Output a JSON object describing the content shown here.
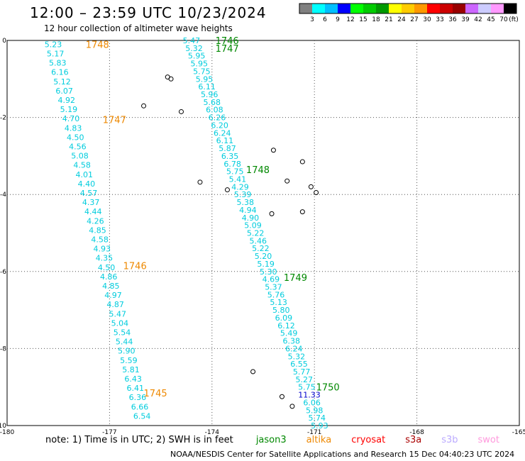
{
  "title": "12:00 – 23:59 UTC 10/23/2024",
  "subtitle": "12 hour collection of altimeter wave heights",
  "unit": "(ft)",
  "legend": {
    "colors": [
      "#808080",
      "#00ffff",
      "#00bfff",
      "#0000ff",
      "#00ff00",
      "#00cc00",
      "#009900",
      "#ffff00",
      "#ffcc00",
      "#ff9900",
      "#ff0000",
      "#cc0000",
      "#990000",
      "#cc66ff",
      "#ccccff",
      "#ff99ff",
      "#000000"
    ],
    "ticks": [
      "3",
      "6",
      "9",
      "12",
      "15",
      "18",
      "21",
      "24",
      "27",
      "30",
      "33",
      "36",
      "39",
      "42",
      "45",
      "70"
    ]
  },
  "axes": {
    "x_ticks": [
      "-180",
      "-177",
      "-174",
      "-171",
      "-168",
      "-165"
    ],
    "y_ticks": [
      "0",
      "-2",
      "-4",
      "-6",
      "-8",
      "-10"
    ],
    "xlim": [
      -180,
      -165
    ],
    "ylim": [
      -10,
      0
    ]
  },
  "tracks": [
    {
      "name": "west",
      "start": [
        -178.65,
        -0.1
      ],
      "end": [
        -176.05,
        -9.75
      ],
      "values": [
        "5.23",
        "5.17",
        "5.83",
        "6.16",
        "5.12",
        "6.07",
        "4.92",
        "5.19",
        "4.70",
        "4.83",
        "4.50",
        "4.56",
        "5.08",
        "4.58",
        "4.01",
        "4.40",
        "4.57",
        "4.37",
        "4.44",
        "4.26",
        "4.85",
        "4.58",
        "4.93",
        "4.35",
        "4.50",
        "4.86",
        "4.85",
        "4.97",
        "4.87",
        "5.47",
        "5.04",
        "5.54",
        "5.44",
        "5.90",
        "5.59",
        "5.81",
        "6.43",
        "6.41",
        "6.36",
        "6.66",
        "6.54"
      ],
      "color": "#00ccdd"
    },
    {
      "name": "east",
      "start": [
        -174.6,
        -0.0
      ],
      "end": [
        -170.85,
        -10.0
      ],
      "values": [
        "5.47",
        "5.32",
        "5.95",
        "5.95",
        "5.75",
        "5.95",
        "6.11",
        "5.96",
        "5.68",
        "6.08",
        "6.26",
        "6.20",
        "6.24",
        "6.11",
        "5.87",
        "6.35",
        "6.78",
        "5.75",
        "5.41",
        "4.29",
        "5.39",
        "5.38",
        "4.94",
        "4.90",
        "5.09",
        "5.22",
        "5.46",
        "5.22",
        "5.20",
        "5.19",
        "5.30",
        "4.69",
        "5.37",
        "5.76",
        "5.13",
        "5.80",
        "6.09",
        "6.12",
        "5.49",
        "6.38",
        "6.24",
        "5.32",
        "6.55",
        "5.77",
        "5.27",
        "5.75",
        "11.33",
        "6.06",
        "5.98",
        "5.74",
        "5.93"
      ],
      "color": "#00ccdd",
      "highlight": {
        "value": "11.33",
        "color": "#0000cc"
      }
    }
  ],
  "time_labels": [
    {
      "text": "1746",
      "lon": -173.9,
      "lat": 0.0,
      "color": "#008800"
    },
    {
      "text": "1747",
      "lon": -173.9,
      "lat": -0.2,
      "color": "#008800"
    },
    {
      "text": "1748",
      "lon": -173.0,
      "lat": -3.35,
      "color": "#008800"
    },
    {
      "text": "1749",
      "lon": -171.9,
      "lat": -6.15,
      "color": "#008800"
    },
    {
      "text": "1750",
      "lon": -170.95,
      "lat": -9.0,
      "color": "#008800"
    },
    {
      "text": "1748",
      "lon": -177.7,
      "lat": -0.1,
      "color": "#ee8800"
    },
    {
      "text": "1747",
      "lon": -177.2,
      "lat": -2.05,
      "color": "#ee8800"
    },
    {
      "text": "1746",
      "lon": -176.6,
      "lat": -5.85,
      "color": "#ee8800"
    },
    {
      "text": "1745",
      "lon": -176.0,
      "lat": -9.15,
      "color": "#ee8800"
    }
  ],
  "islands": [
    {
      "lon": -176.0,
      "lat": -1.7
    },
    {
      "lon": -175.2,
      "lat": -1.0
    },
    {
      "lon": -175.3,
      "lat": -0.95
    },
    {
      "lon": -174.9,
      "lat": -1.85
    },
    {
      "lon": -172.2,
      "lat": -2.85
    },
    {
      "lon": -171.35,
      "lat": -3.15
    },
    {
      "lon": -171.8,
      "lat": -3.65
    },
    {
      "lon": -171.1,
      "lat": -3.8
    },
    {
      "lon": -170.95,
      "lat": -3.95
    },
    {
      "lon": -172.25,
      "lat": -4.5
    },
    {
      "lon": -171.35,
      "lat": -4.45
    },
    {
      "lon": -174.35,
      "lat": -3.68
    },
    {
      "lon": -173.55,
      "lat": -3.88
    },
    {
      "lon": -172.8,
      "lat": -8.6
    },
    {
      "lon": -171.95,
      "lat": -9.25
    },
    {
      "lon": -171.65,
      "lat": -9.5
    }
  ],
  "notes": {
    "prefix": "note: 1) Time is in UTC; 2) SWH is in feet",
    "satellites": [
      {
        "name": "jason3",
        "color": "#008800"
      },
      {
        "name": "altika",
        "color": "#ee8800"
      },
      {
        "name": "cryosat",
        "color": "#ff0000"
      },
      {
        "name": "s3a",
        "color": "#aa0000"
      },
      {
        "name": "s3b",
        "color": "#bbaaff"
      },
      {
        "name": "swot",
        "color": "#ff99dd"
      }
    ]
  },
  "credit": "NOAA/NESDIS Center for Satellite Applications and Research   15 Dec 04:40:23 UTC 2024"
}
